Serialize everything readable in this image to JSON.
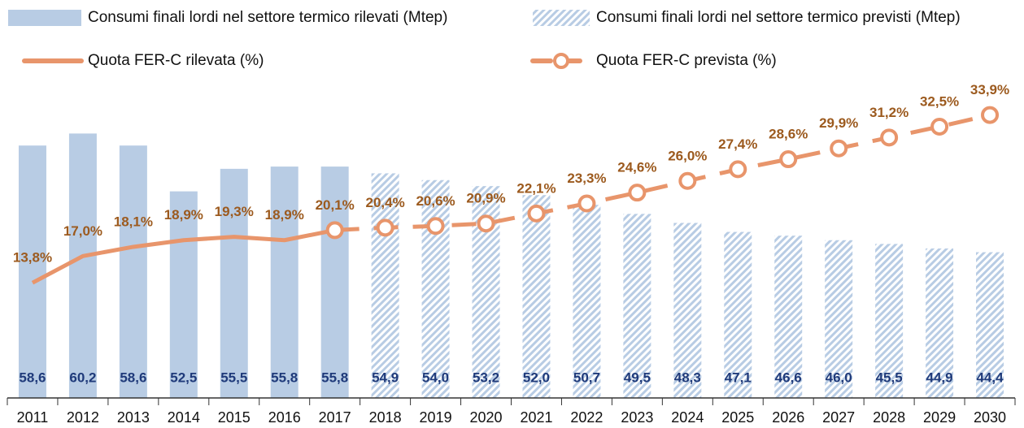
{
  "chart_data": {
    "type": "bar",
    "categories": [
      "2011",
      "2012",
      "2013",
      "2014",
      "2015",
      "2016",
      "2017",
      "2018",
      "2019",
      "2020",
      "2021",
      "2022",
      "2023",
      "2024",
      "2025",
      "2026",
      "2027",
      "2028",
      "2029",
      "2030"
    ],
    "ylim": [
      25,
      65
    ],
    "y2lim": [
      0,
      36
    ],
    "legend": "top",
    "series": [
      {
        "name": "Consumi finali lordi nel settore termico rilevati (Mtep)",
        "type": "bar",
        "color": "#b8cce4",
        "values": [
          58.6,
          60.2,
          58.6,
          52.5,
          55.5,
          55.8,
          55.8,
          null,
          null,
          null,
          null,
          null,
          null,
          null,
          null,
          null,
          null,
          null,
          null,
          null
        ],
        "value_labels": [
          "58,6",
          "60,2",
          "58,6",
          "52,5",
          "55,5",
          "55,8",
          "55,8",
          null,
          null,
          null,
          null,
          null,
          null,
          null,
          null,
          null,
          null,
          null,
          null,
          null
        ]
      },
      {
        "name": "Consumi finali lordi nel settore termico previsti (Mtep)",
        "type": "bar",
        "color": "#b8cce4",
        "pattern": "hatch",
        "values": [
          null,
          null,
          null,
          null,
          null,
          null,
          null,
          54.9,
          54.0,
          53.2,
          52.0,
          50.7,
          49.5,
          48.3,
          47.1,
          46.6,
          46.0,
          45.5,
          44.9,
          44.4
        ],
        "value_labels": [
          null,
          null,
          null,
          null,
          null,
          null,
          null,
          "54,9",
          "54,0",
          "53,2",
          "52,0",
          "50,7",
          "49,5",
          "48,3",
          "47,1",
          "46,6",
          "46,0",
          "45,5",
          "44,9",
          "44,4"
        ]
      },
      {
        "name": "Quota FER-C rilevata (%)",
        "type": "line",
        "axis": "y2",
        "color": "#e8956b",
        "values": [
          13.8,
          17.0,
          18.1,
          18.9,
          19.3,
          18.9,
          20.1,
          null,
          null,
          null,
          null,
          null,
          null,
          null,
          null,
          null,
          null,
          null,
          null,
          null
        ],
        "value_labels": [
          "13,8%",
          "17,0%",
          "18,1%",
          "18,9%",
          "19,3%",
          "18,9%",
          "20,1%",
          null,
          null,
          null,
          null,
          null,
          null,
          null,
          null,
          null,
          null,
          null,
          null,
          null
        ]
      },
      {
        "name": "Quota FER-C prevista (%)",
        "type": "line",
        "axis": "y2",
        "color": "#e8956b",
        "dashed": true,
        "markers": true,
        "values": [
          null,
          null,
          null,
          null,
          null,
          null,
          20.1,
          20.4,
          20.6,
          20.9,
          22.1,
          23.3,
          24.6,
          26.0,
          27.4,
          28.6,
          29.9,
          31.2,
          32.5,
          33.9
        ],
        "value_labels": [
          null,
          null,
          null,
          null,
          null,
          null,
          null,
          "20,4%",
          "20,6%",
          "20,9%",
          "22,1%",
          "23,3%",
          "24,6%",
          "26,0%",
          "27,4%",
          "28,6%",
          "29,9%",
          "31,2%",
          "32,5%",
          "33,9%"
        ]
      }
    ]
  }
}
